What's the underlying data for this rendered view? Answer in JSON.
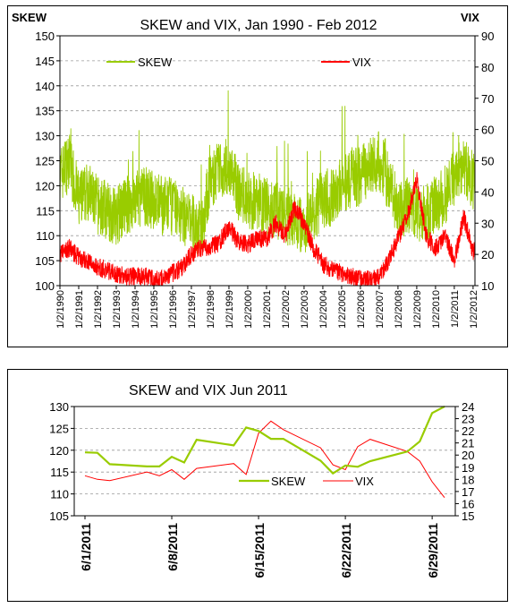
{
  "chart_data": [
    {
      "type": "line",
      "title": "SKEW and VIX, Jan 1990 - Feb 2012",
      "ylabel": "SKEW",
      "y2label": "VIX",
      "ylim": [
        100,
        150
      ],
      "y2lim": [
        10,
        90
      ],
      "yticks": [
        "100",
        "105",
        "110",
        "115",
        "120",
        "125",
        "130",
        "135",
        "140",
        "145",
        "150"
      ],
      "y2ticks": [
        "10",
        "20",
        "30",
        "40",
        "50",
        "60",
        "70",
        "80",
        "90"
      ],
      "xticks": [
        "1/2/1990",
        "1/2/1991",
        "1/2/1992",
        "1/2/1993",
        "1/2/1994",
        "1/2/1995",
        "1/2/1996",
        "1/2/1997",
        "1/2/1998",
        "1/2/1999",
        "1/2/2000",
        "1/2/2001",
        "1/2/2002",
        "1/2/2003",
        "1/2/2004",
        "1/2/2005",
        "1/2/2006",
        "1/2/2007",
        "1/2/2008",
        "1/2/2009",
        "1/2/2010",
        "1/2/2011",
        "1/2/2012"
      ],
      "grid": true,
      "legend": "top",
      "x": [
        1990,
        1990.5,
        1991,
        1991.5,
        1992,
        1992.5,
        1993,
        1993.5,
        1994,
        1994.5,
        1995,
        1995.5,
        1996,
        1996.5,
        1997,
        1997.5,
        1998,
        1998.5,
        1999,
        1999.5,
        2000,
        2000.5,
        2001,
        2001.5,
        2002,
        2002.5,
        2003,
        2003.5,
        2004,
        2004.5,
        2005,
        2005.5,
        2006,
        2006.5,
        2007,
        2007.5,
        2008,
        2008.5,
        2009,
        2009.5,
        2010,
        2010.5,
        2011,
        2011.5,
        2012
      ],
      "series": [
        {
          "name": "SKEW",
          "axis": "left",
          "color": "#99cc00",
          "values": [
            122,
            125,
            117,
            119,
            116,
            115,
            114,
            116,
            117,
            118,
            117,
            116,
            116,
            114,
            113,
            111,
            121,
            123,
            124,
            119,
            117,
            117,
            116,
            115,
            114,
            113,
            112,
            115,
            117,
            118,
            120,
            121,
            122,
            124,
            125,
            121,
            115,
            116,
            114,
            115,
            116,
            118,
            122,
            124,
            121
          ]
        },
        {
          "name": "VIX",
          "axis": "right",
          "color": "#ff0000",
          "values": [
            20,
            22,
            19,
            18,
            16,
            15,
            14,
            13,
            13,
            13,
            12,
            12,
            14,
            16,
            20,
            22,
            22,
            24,
            29,
            24,
            23,
            25,
            25,
            30,
            26,
            35,
            30,
            22,
            17,
            15,
            14,
            13,
            12,
            12,
            13,
            18,
            25,
            32,
            44,
            26,
            22,
            26,
            18,
            32,
            21
          ]
        }
      ]
    },
    {
      "type": "line",
      "title": "SKEW and VIX Jun 2011",
      "ylim": [
        105,
        130
      ],
      "y2lim": [
        15,
        24
      ],
      "yticks": [
        "105",
        "110",
        "115",
        "120",
        "125",
        "130"
      ],
      "y2ticks": [
        "15",
        "16",
        "17",
        "18",
        "19",
        "20",
        "21",
        "22",
        "23",
        "24"
      ],
      "xticks": [
        "6/1/2011",
        "6/8/2011",
        "6/15/2011",
        "6/22/2011",
        "6/29/2011"
      ],
      "grid": true,
      "legend": "inside-center",
      "x": [
        1,
        2,
        3,
        6,
        7,
        8,
        9,
        10,
        13,
        14,
        15,
        16,
        17,
        20,
        21,
        22,
        23,
        24,
        27,
        28,
        29,
        30
      ],
      "series": [
        {
          "name": "SKEW",
          "axis": "left",
          "color": "#99cc00",
          "values": [
            119.5,
            119.4,
            116.8,
            116.3,
            116.3,
            118.5,
            117.2,
            122.4,
            121.1,
            125.2,
            124.4,
            122.6,
            122.6,
            117.6,
            114.7,
            116.5,
            116.2,
            117.5,
            119.7,
            122,
            128.5,
            130
          ]
        },
        {
          "name": "VIX",
          "axis": "right",
          "color": "#ff0000",
          "values": [
            18.3,
            18,
            17.9,
            18.6,
            18.3,
            18.8,
            18,
            18.9,
            19.3,
            18.4,
            21.8,
            22.8,
            22.1,
            20.6,
            19.2,
            18.8,
            20.7,
            21.3,
            20.3,
            19.5,
            17.8,
            16.5
          ]
        }
      ]
    }
  ]
}
